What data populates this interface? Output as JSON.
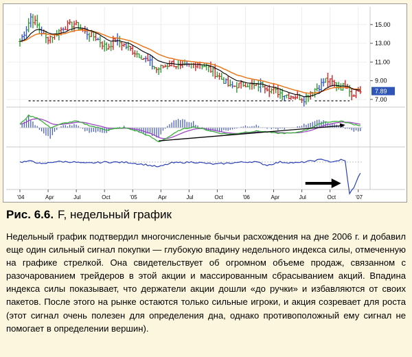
{
  "figure": {
    "label": "Рис. 6.6.",
    "title": "F, недельный график",
    "text": "Недельный график подтвердил многочисленные бычьи расхождения на дне 2006 г. и добавил еще один сильный сигнал покупки — глубокую впадину недельного индекса силы, отмеченную на графике стрелкой. Она свидетельствует об огромном объеме продаж, связанном с разочарованием трейдеров в этой акции и массированным сбрасыванием акций. Впадина индекса силы показывает, что держатели акции дошли «до ручки» и избавляются от своих пакетов. После этого на рынке остаются только сильные игроки, и акция созревает для роста (этот сигнал очень полезен для определения дна, однако противоположный ему сигнал не помогает в определении вершин)."
  },
  "chart_data": {
    "type": "bar",
    "x_tick_labels": [
      "'04",
      "Apr",
      "Jul",
      "Oct",
      "'05",
      "Apr",
      "Jul",
      "Oct",
      "'06",
      "Apr",
      "Jul",
      "Oct",
      "'07"
    ],
    "x_tick_index": [
      0,
      13,
      26,
      39,
      52,
      65,
      78,
      91,
      104,
      117,
      130,
      143,
      156
    ],
    "y_ticks": [
      15.0,
      13.0,
      11.0,
      9.0,
      7.0
    ],
    "y_tick_labels": [
      "15.00",
      "13.00",
      "11.00",
      "9.00",
      "7.00"
    ],
    "ylim": [
      6.4,
      16.6
    ],
    "last_price": "7.89",
    "price_anchors": [
      [
        0,
        13.2
      ],
      [
        3,
        14.6
      ],
      [
        5,
        15.8
      ],
      [
        8,
        14.9
      ],
      [
        12,
        13.5
      ],
      [
        16,
        13.9
      ],
      [
        20,
        14.7
      ],
      [
        25,
        15.1
      ],
      [
        30,
        14.2
      ],
      [
        35,
        13.6
      ],
      [
        40,
        12.5
      ],
      [
        44,
        13.4
      ],
      [
        48,
        12.8
      ],
      [
        52,
        12.2
      ],
      [
        56,
        11.6
      ],
      [
        60,
        10.9
      ],
      [
        63,
        10.2
      ],
      [
        66,
        10.5
      ],
      [
        70,
        10.9
      ],
      [
        74,
        10.4
      ],
      [
        78,
        10.6
      ],
      [
        82,
        10.9
      ],
      [
        86,
        10.5
      ],
      [
        90,
        9.8
      ],
      [
        94,
        9.0
      ],
      [
        97,
        8.3
      ],
      [
        100,
        8.5
      ],
      [
        104,
        8.7
      ],
      [
        108,
        8.4
      ],
      [
        112,
        8.6
      ],
      [
        116,
        8.0
      ],
      [
        120,
        7.7
      ],
      [
        124,
        7.4
      ],
      [
        128,
        7.3
      ],
      [
        131,
        7.1
      ],
      [
        134,
        7.8
      ],
      [
        138,
        8.4
      ],
      [
        141,
        9.1
      ],
      [
        144,
        8.8
      ],
      [
        148,
        8.3
      ],
      [
        151,
        8.6
      ],
      [
        153,
        7.5
      ],
      [
        155,
        7.9
      ],
      [
        157,
        7.89
      ]
    ],
    "support_lines": [
      {
        "from": 4,
        "to": 126,
        "level": 6.85
      },
      {
        "from": 136,
        "to": 152,
        "level": 6.85
      }
    ],
    "macd_anchors": [
      [
        0,
        0.3
      ],
      [
        4,
        1.1
      ],
      [
        8,
        0.9
      ],
      [
        14,
        0.0
      ],
      [
        20,
        0.4
      ],
      [
        26,
        0.6
      ],
      [
        32,
        0.2
      ],
      [
        40,
        -0.2
      ],
      [
        48,
        0.0
      ],
      [
        54,
        -0.3
      ],
      [
        60,
        -0.8
      ],
      [
        64,
        -1.3
      ],
      [
        68,
        -0.9
      ],
      [
        74,
        -0.2
      ],
      [
        80,
        0.1
      ],
      [
        86,
        -0.2
      ],
      [
        92,
        -0.5
      ],
      [
        98,
        -0.6
      ],
      [
        104,
        -0.4
      ],
      [
        110,
        -0.3
      ],
      [
        118,
        -0.5
      ],
      [
        126,
        -0.5
      ],
      [
        132,
        -0.2
      ],
      [
        140,
        0.5
      ],
      [
        148,
        0.6
      ],
      [
        154,
        0.3
      ],
      [
        157,
        0.2
      ]
    ],
    "divergence_line": {
      "from_index": 64,
      "to_index": 150,
      "from_value": -1.2,
      "to_value": 0.25
    },
    "force_anchors": [
      [
        0,
        0.0
      ],
      [
        6,
        0.1
      ],
      [
        10,
        -0.25
      ],
      [
        16,
        0.05
      ],
      [
        24,
        0.02
      ],
      [
        30,
        -0.15
      ],
      [
        40,
        0.0
      ],
      [
        50,
        -0.05
      ],
      [
        58,
        -0.3
      ],
      [
        64,
        -0.55
      ],
      [
        70,
        -0.1
      ],
      [
        80,
        0.0
      ],
      [
        90,
        -0.25
      ],
      [
        100,
        -0.05
      ],
      [
        108,
        0.05
      ],
      [
        114,
        -0.35
      ],
      [
        120,
        0.0
      ],
      [
        128,
        -0.1
      ],
      [
        134,
        0.1
      ],
      [
        140,
        0.3
      ],
      [
        144,
        -0.05
      ],
      [
        148,
        0.25
      ],
      [
        150,
        0.1
      ],
      [
        152,
        -3.6
      ],
      [
        154,
        -2.8
      ],
      [
        157,
        -1.2
      ]
    ],
    "force_arrow_index": 150
  },
  "colors": {
    "background": "#fbf6dd",
    "panel": "#ffffff",
    "ema_black": "#000000",
    "ema_orange": "#e8761c",
    "bar_up": "#2e9a2e",
    "bar_down": "#cc2222",
    "bar_neutral": "#3355cc",
    "macd_green": "#3ab03a",
    "macd_signal": "#9b47c2",
    "force_line": "#2a3fb5",
    "label_box": "#2f55b8"
  }
}
